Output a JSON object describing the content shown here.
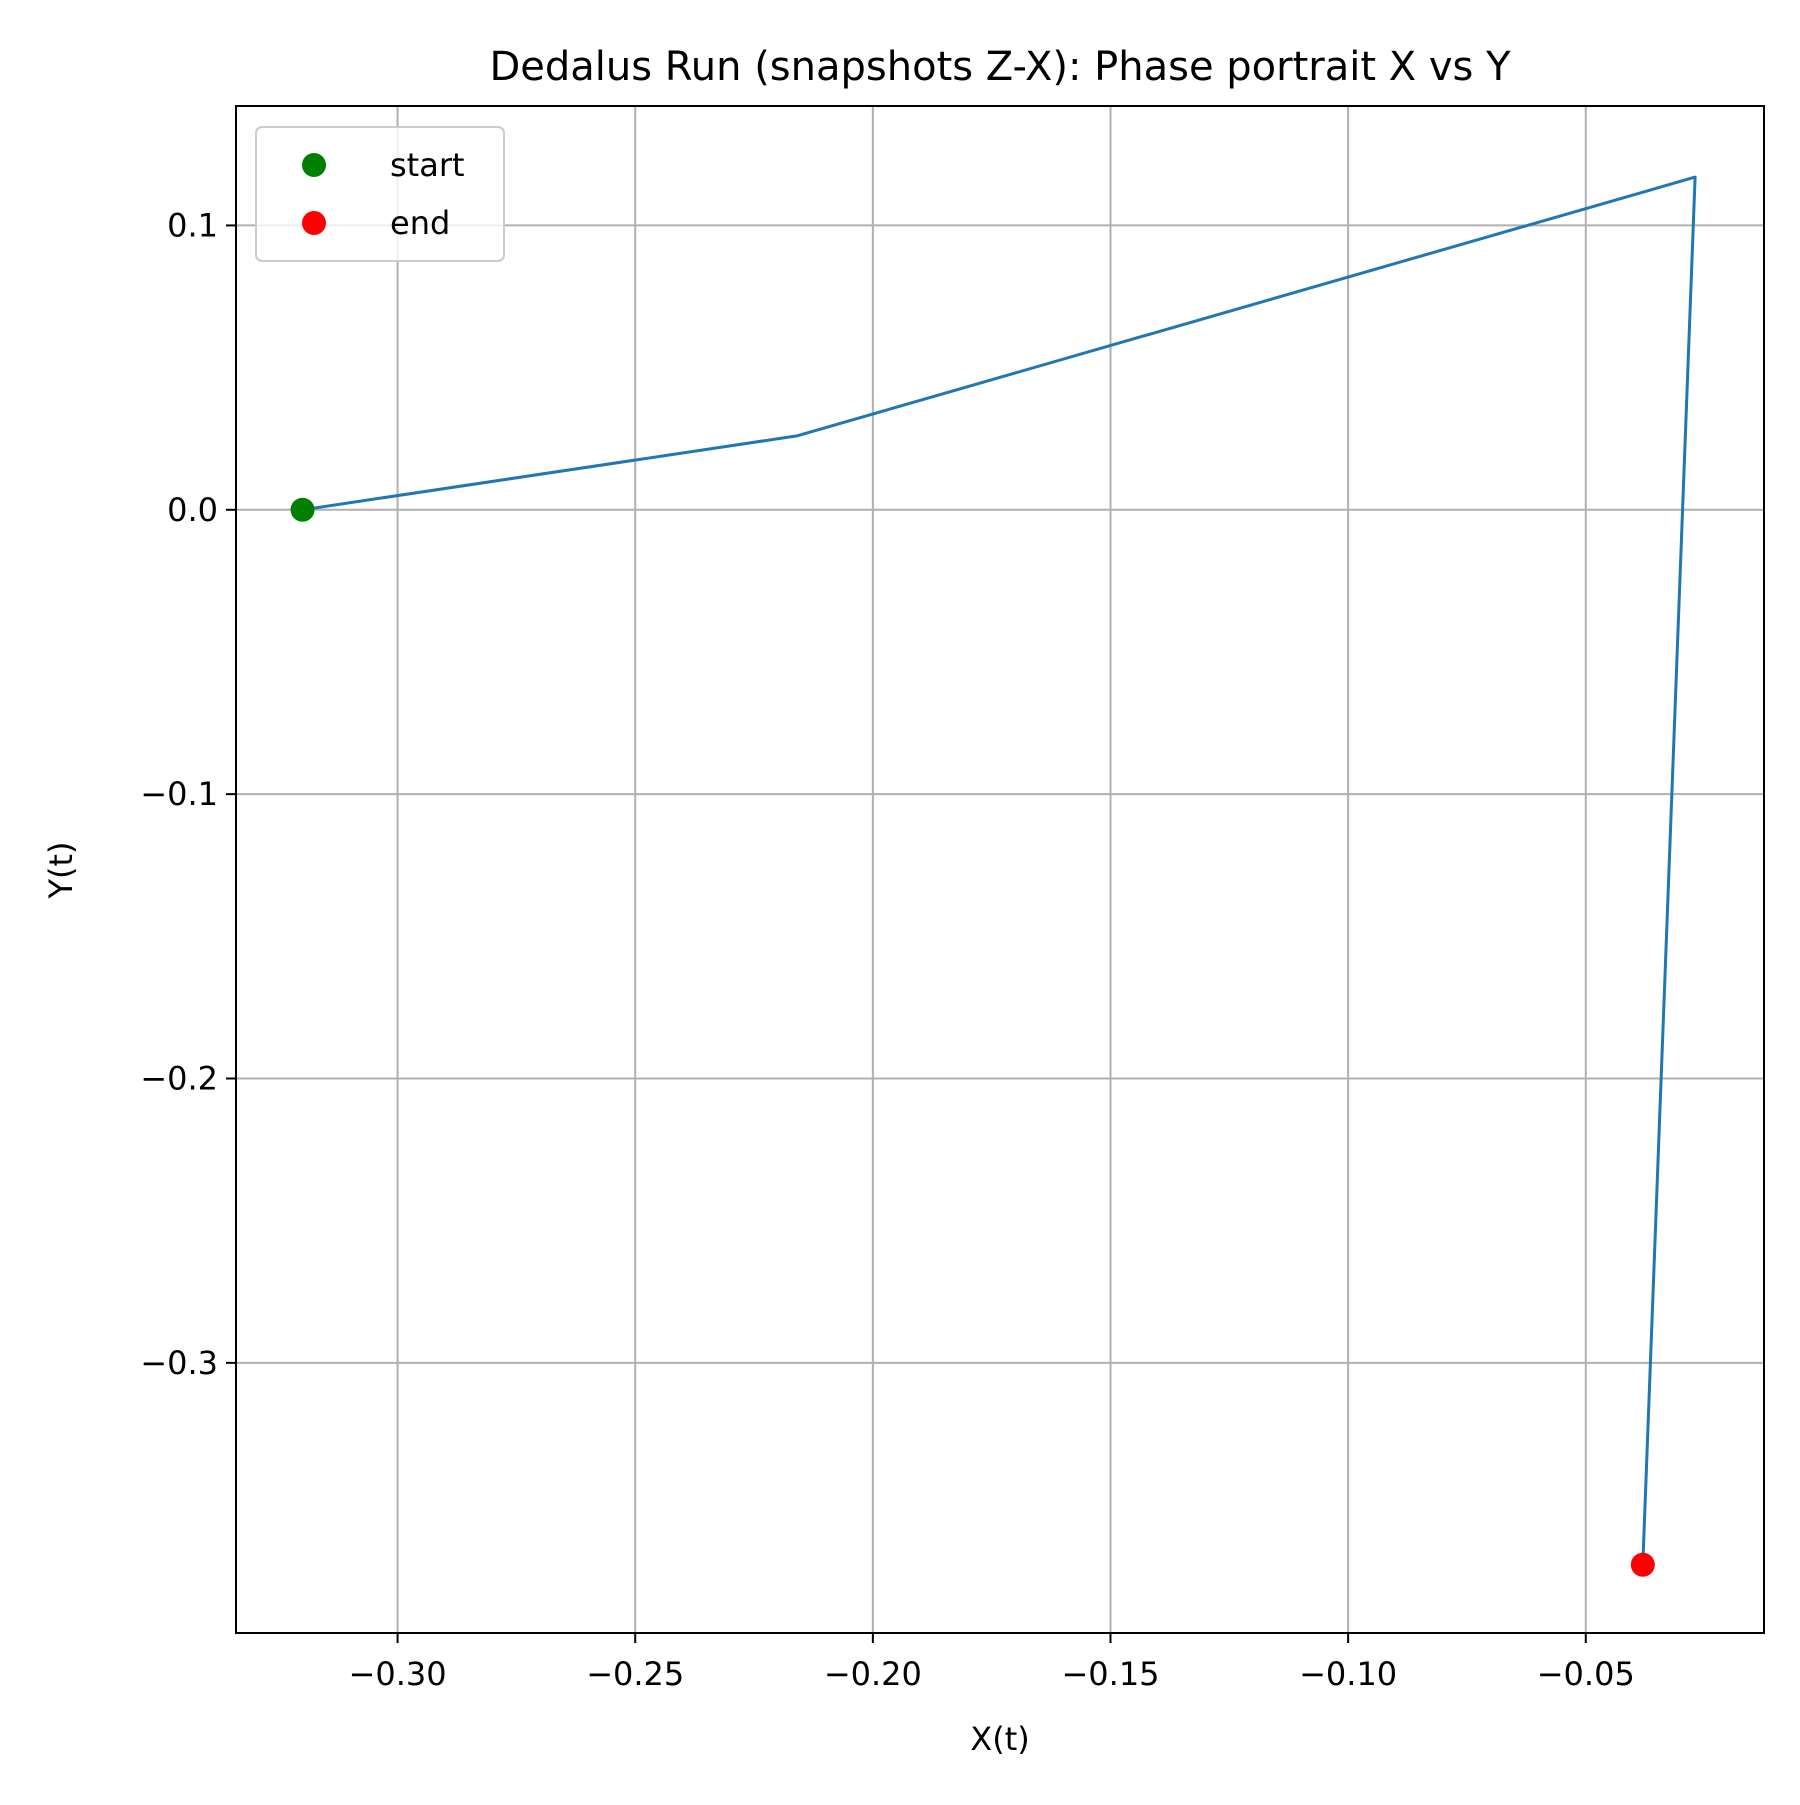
{
  "chart_data": {
    "type": "line",
    "title": "Dedalus Run (snapshots Z-X): Phase portrait X vs Y",
    "xlabel": "X(t)",
    "ylabel": "Y(t)",
    "xlim": [
      -0.334,
      -0.0125
    ],
    "ylim": [
      -0.395,
      0.142
    ],
    "xticks": [
      -0.3,
      -0.25,
      -0.2,
      -0.15,
      -0.1,
      -0.05
    ],
    "xtick_labels": [
      "−0.30",
      "−0.25",
      "−0.20",
      "−0.15",
      "−0.10",
      "−0.05"
    ],
    "yticks": [
      0.1,
      0.0,
      -0.1,
      -0.2,
      -0.3
    ],
    "ytick_labels": [
      "0.1",
      "0.0",
      "−0.1",
      "−0.2",
      "−0.3"
    ],
    "grid": true,
    "legend_position": "top-left",
    "series": [
      {
        "type": "line",
        "color": "#1f77b4",
        "x": [
          -0.32,
          -0.216,
          -0.027,
          -0.038
        ],
        "y": [
          0.0,
          0.026,
          0.117,
          -0.371
        ]
      }
    ],
    "markers": [
      {
        "name": "start",
        "x": -0.32,
        "y": 0.0,
        "color": "#008000"
      },
      {
        "name": "end",
        "x": -0.038,
        "y": -0.371,
        "color": "#ff0000"
      }
    ]
  }
}
